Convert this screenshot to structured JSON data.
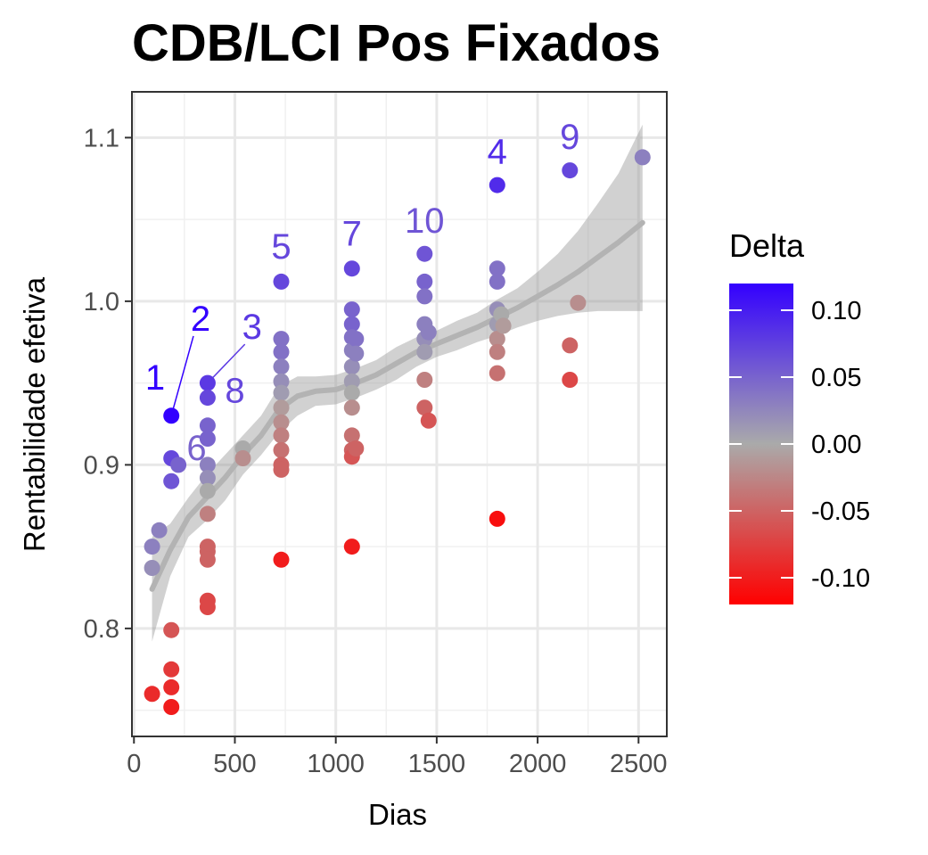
{
  "chart_data": {
    "type": "scatter",
    "title": "CDB/LCI Pos Fixados",
    "xlabel": "Dias",
    "ylabel": "Rentabilidade efetiva",
    "xlim": [
      -10,
      2640
    ],
    "ylim": [
      0.734,
      1.128
    ],
    "xticks": [
      0,
      500,
      1000,
      1500,
      2000,
      2500
    ],
    "yticks": [
      0.8,
      0.9,
      1.0,
      1.1
    ],
    "xtick_labels": [
      "0",
      "500",
      "1000",
      "1500",
      "2000",
      "2500"
    ],
    "ytick_labels": [
      "0.8",
      "0.9",
      "1.0",
      "1.1"
    ],
    "grid": true,
    "legend": {
      "title": "Delta",
      "position": "right",
      "min": -0.12,
      "max": 0.12,
      "breaks": [
        0.1,
        0.05,
        0.0,
        -0.05,
        -0.1
      ],
      "break_labels": [
        "0.10",
        "0.05",
        "0.00",
        "-0.05",
        "-0.10"
      ],
      "colors": {
        "low": "#ff0000",
        "mid": "#aaaaaa",
        "high": "#3300ff"
      }
    },
    "points": [
      {
        "x": 90,
        "y": 0.76,
        "d": -0.09
      },
      {
        "x": 90,
        "y": 0.85,
        "d": 0.03
      },
      {
        "x": 90,
        "y": 0.837,
        "d": 0.02
      },
      {
        "x": 125,
        "y": 0.86,
        "d": 0.03
      },
      {
        "x": 185,
        "y": 0.93,
        "d": 0.12
      },
      {
        "x": 185,
        "y": 0.904,
        "d": 0.07
      },
      {
        "x": 185,
        "y": 0.89,
        "d": 0.06
      },
      {
        "x": 185,
        "y": 0.799,
        "d": -0.06
      },
      {
        "x": 185,
        "y": 0.775,
        "d": -0.08
      },
      {
        "x": 185,
        "y": 0.764,
        "d": -0.09
      },
      {
        "x": 185,
        "y": 0.752,
        "d": -0.1
      },
      {
        "x": 220,
        "y": 0.9,
        "d": 0.05
      },
      {
        "x": 365,
        "y": 0.95,
        "d": 0.08
      },
      {
        "x": 365,
        "y": 0.941,
        "d": 0.07
      },
      {
        "x": 365,
        "y": 0.924,
        "d": 0.05
      },
      {
        "x": 365,
        "y": 0.916,
        "d": 0.05
      },
      {
        "x": 365,
        "y": 0.9,
        "d": 0.03
      },
      {
        "x": 365,
        "y": 0.892,
        "d": 0.02
      },
      {
        "x": 365,
        "y": 0.884,
        "d": 0.0
      },
      {
        "x": 365,
        "y": 0.87,
        "d": -0.03
      },
      {
        "x": 365,
        "y": 0.85,
        "d": -0.05
      },
      {
        "x": 365,
        "y": 0.847,
        "d": -0.05
      },
      {
        "x": 365,
        "y": 0.842,
        "d": -0.05
      },
      {
        "x": 365,
        "y": 0.817,
        "d": -0.07
      },
      {
        "x": 365,
        "y": 0.813,
        "d": -0.07
      },
      {
        "x": 540,
        "y": 0.91,
        "d": 0.0
      },
      {
        "x": 540,
        "y": 0.904,
        "d": -0.02
      },
      {
        "x": 730,
        "y": 1.012,
        "d": 0.07
      },
      {
        "x": 730,
        "y": 0.977,
        "d": 0.04
      },
      {
        "x": 730,
        "y": 0.969,
        "d": 0.04
      },
      {
        "x": 730,
        "y": 0.96,
        "d": 0.03
      },
      {
        "x": 730,
        "y": 0.951,
        "d": 0.02
      },
      {
        "x": 730,
        "y": 0.944,
        "d": 0.01
      },
      {
        "x": 730,
        "y": 0.935,
        "d": -0.01
      },
      {
        "x": 730,
        "y": 0.926,
        "d": -0.02
      },
      {
        "x": 730,
        "y": 0.918,
        "d": -0.03
      },
      {
        "x": 730,
        "y": 0.909,
        "d": -0.04
      },
      {
        "x": 730,
        "y": 0.9,
        "d": -0.05
      },
      {
        "x": 730,
        "y": 0.897,
        "d": -0.05
      },
      {
        "x": 730,
        "y": 0.842,
        "d": -0.1
      },
      {
        "x": 1080,
        "y": 1.02,
        "d": 0.07
      },
      {
        "x": 1080,
        "y": 0.995,
        "d": 0.05
      },
      {
        "x": 1080,
        "y": 0.986,
        "d": 0.05
      },
      {
        "x": 1080,
        "y": 0.978,
        "d": 0.04
      },
      {
        "x": 1080,
        "y": 0.97,
        "d": 0.03
      },
      {
        "x": 1080,
        "y": 0.96,
        "d": 0.02
      },
      {
        "x": 1080,
        "y": 0.951,
        "d": 0.01
      },
      {
        "x": 1080,
        "y": 0.944,
        "d": 0.0
      },
      {
        "x": 1080,
        "y": 0.935,
        "d": -0.02
      },
      {
        "x": 1080,
        "y": 0.918,
        "d": -0.04
      },
      {
        "x": 1080,
        "y": 0.909,
        "d": -0.05
      },
      {
        "x": 1080,
        "y": 0.905,
        "d": -0.06
      },
      {
        "x": 1080,
        "y": 0.85,
        "d": -0.1
      },
      {
        "x": 1100,
        "y": 0.977,
        "d": 0.04
      },
      {
        "x": 1100,
        "y": 0.968,
        "d": 0.03
      },
      {
        "x": 1100,
        "y": 0.91,
        "d": -0.05
      },
      {
        "x": 1440,
        "y": 1.029,
        "d": 0.06
      },
      {
        "x": 1440,
        "y": 1.012,
        "d": 0.05
      },
      {
        "x": 1440,
        "y": 1.003,
        "d": 0.04
      },
      {
        "x": 1440,
        "y": 0.986,
        "d": 0.03
      },
      {
        "x": 1440,
        "y": 0.977,
        "d": 0.02
      },
      {
        "x": 1440,
        "y": 0.969,
        "d": 0.01
      },
      {
        "x": 1440,
        "y": 0.952,
        "d": -0.03
      },
      {
        "x": 1440,
        "y": 0.935,
        "d": -0.05
      },
      {
        "x": 1460,
        "y": 0.981,
        "d": 0.03
      },
      {
        "x": 1460,
        "y": 0.927,
        "d": -0.06
      },
      {
        "x": 1800,
        "y": 1.071,
        "d": 0.09
      },
      {
        "x": 1800,
        "y": 1.02,
        "d": 0.04
      },
      {
        "x": 1800,
        "y": 1.012,
        "d": 0.04
      },
      {
        "x": 1800,
        "y": 0.995,
        "d": 0.02
      },
      {
        "x": 1800,
        "y": 0.986,
        "d": 0.01
      },
      {
        "x": 1800,
        "y": 0.977,
        "d": -0.02
      },
      {
        "x": 1800,
        "y": 0.969,
        "d": -0.03
      },
      {
        "x": 1800,
        "y": 0.956,
        "d": -0.04
      },
      {
        "x": 1800,
        "y": 0.867,
        "d": -0.11
      },
      {
        "x": 1820,
        "y": 0.992,
        "d": 0.0
      },
      {
        "x": 1830,
        "y": 0.985,
        "d": -0.01
      },
      {
        "x": 2160,
        "y": 1.08,
        "d": 0.07
      },
      {
        "x": 2160,
        "y": 0.973,
        "d": -0.05
      },
      {
        "x": 2160,
        "y": 0.952,
        "d": -0.07
      },
      {
        "x": 2200,
        "y": 0.999,
        "d": -0.02
      },
      {
        "x": 2520,
        "y": 1.088,
        "d": 0.03
      }
    ],
    "smooth": {
      "x": [
        90,
        180,
        270,
        360,
        450,
        540,
        630,
        720,
        810,
        900,
        1000,
        1100,
        1200,
        1300,
        1400,
        1500,
        1600,
        1700,
        1800,
        1900,
        2000,
        2100,
        2200,
        2300,
        2400,
        2520
      ],
      "y": [
        0.824,
        0.848,
        0.868,
        0.88,
        0.892,
        0.906,
        0.918,
        0.934,
        0.942,
        0.945,
        0.946,
        0.95,
        0.955,
        0.962,
        0.969,
        0.974,
        0.979,
        0.984,
        0.99,
        0.996,
        1.003,
        1.01,
        1.018,
        1.027,
        1.036,
        1.048
      ],
      "lower": [
        0.792,
        0.832,
        0.856,
        0.866,
        0.878,
        0.894,
        0.906,
        0.92,
        0.93,
        0.936,
        0.937,
        0.941,
        0.946,
        0.952,
        0.96,
        0.966,
        0.97,
        0.975,
        0.979,
        0.984,
        0.988,
        0.991,
        0.993,
        0.994,
        0.994,
        0.994
      ],
      "upper": [
        0.856,
        0.864,
        0.88,
        0.894,
        0.906,
        0.918,
        0.93,
        0.948,
        0.954,
        0.954,
        0.955,
        0.959,
        0.964,
        0.972,
        0.978,
        0.982,
        0.988,
        0.993,
        1.001,
        1.008,
        1.018,
        1.029,
        1.043,
        1.06,
        1.078,
        1.108
      ]
    },
    "annotations": [
      {
        "text": "1",
        "x": 185,
        "y": 0.93,
        "d": 0.12,
        "tx": 105,
        "ty": 0.946
      },
      {
        "text": "2",
        "x": 185,
        "y": 0.93,
        "d": 0.12,
        "tx": 330,
        "ty": 0.982,
        "line": true
      },
      {
        "text": "3",
        "x": 365,
        "y": 0.95,
        "d": 0.08,
        "tx": 585,
        "ty": 0.977,
        "line": true
      },
      {
        "text": "8",
        "x": 365,
        "y": 0.941,
        "d": 0.07,
        "tx": 500,
        "ty": 0.938
      },
      {
        "text": "6",
        "x": 220,
        "y": 0.9,
        "d": 0.05,
        "tx": 310,
        "ty": 0.903
      },
      {
        "text": "5",
        "x": 730,
        "y": 1.012,
        "d": 0.07,
        "tx": 730,
        "ty": 1.026
      },
      {
        "text": "7",
        "x": 1080,
        "y": 1.02,
        "d": 0.07,
        "tx": 1080,
        "ty": 1.034
      },
      {
        "text": "10",
        "x": 1440,
        "y": 1.029,
        "d": 0.06,
        "tx": 1440,
        "ty": 1.042
      },
      {
        "text": "4",
        "x": 1800,
        "y": 1.071,
        "d": 0.09,
        "tx": 1800,
        "ty": 1.084
      },
      {
        "text": "9",
        "x": 2160,
        "y": 1.08,
        "d": 0.07,
        "tx": 2160,
        "ty": 1.093
      }
    ]
  }
}
